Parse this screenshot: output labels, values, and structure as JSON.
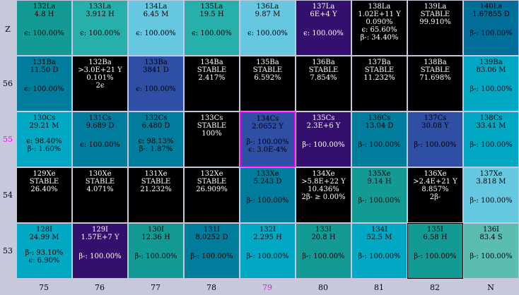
{
  "y_axis": [
    {
      "label": "Z",
      "highlight": false
    },
    {
      "label": "56",
      "highlight": false
    },
    {
      "label": "55",
      "highlight": true
    },
    {
      "label": "54",
      "highlight": false
    },
    {
      "label": "53",
      "highlight": false
    }
  ],
  "x_axis": [
    {
      "label": "75",
      "highlight": false
    },
    {
      "label": "76",
      "highlight": false
    },
    {
      "label": "77",
      "highlight": false
    },
    {
      "label": "78",
      "highlight": false
    },
    {
      "label": "79",
      "highlight": true
    },
    {
      "label": "80",
      "highlight": false
    },
    {
      "label": "81",
      "highlight": false
    },
    {
      "label": "82",
      "highlight": false
    },
    {
      "label": "N",
      "highlight": false
    }
  ],
  "rows": [
    [
      {
        "name": "132La",
        "life": "4.8 H",
        "extra": [],
        "decay": [
          "ϵ: 100.00%"
        ],
        "color": "#149a94",
        "text": "#000"
      },
      {
        "name": "133La",
        "life": "3.912 H",
        "extra": [],
        "decay": [
          "ϵ: 100.00%"
        ],
        "color": "#26afab",
        "text": "#000"
      },
      {
        "name": "134La",
        "life": "6.45 M",
        "extra": [],
        "decay": [
          "ϵ: 100.00%"
        ],
        "color": "#66c8e0",
        "text": "#000"
      },
      {
        "name": "135La",
        "life": "19.5 H",
        "extra": [],
        "decay": [
          "ϵ: 100.00%"
        ],
        "color": "#26afab",
        "text": "#000"
      },
      {
        "name": "136La",
        "life": "9.87 M",
        "extra": [],
        "decay": [
          "ϵ: 100.00%"
        ],
        "color": "#66c8e0",
        "text": "#000"
      },
      {
        "name": "137La",
        "life": "6E+4 Y",
        "extra": [],
        "decay": [
          "ϵ: 100.00%"
        ],
        "color": "#33106e",
        "text": "#fff"
      },
      {
        "name": "138La",
        "life": "1.02E+11 Y",
        "extra": [
          "0.090%"
        ],
        "decay": [
          "ϵ: 65.60%",
          "β-: 34.40%"
        ],
        "color": "#000000",
        "text": "#fff"
      },
      {
        "name": "139La",
        "life": "STABLE",
        "extra": [
          "99.910%"
        ],
        "decay": [],
        "color": "#000000",
        "text": "#fff"
      },
      {
        "name": "140La",
        "life": "1.67855 D",
        "extra": [],
        "decay": [
          "β-: 100.00%"
        ],
        "color": "#006e98",
        "text": "#000"
      }
    ],
    [
      {
        "name": "131Ba",
        "life": "11.50 D",
        "extra": [],
        "decay": [
          "ϵ: 100.00%"
        ],
        "color": "#007c9c",
        "text": "#000"
      },
      {
        "name": "132Ba",
        "life": ">3.0E+21 Y",
        "extra": [
          "0.101%",
          "2ϵ"
        ],
        "decay": [],
        "color": "#000000",
        "text": "#fff"
      },
      {
        "name": "133Ba",
        "life": "3841 D",
        "extra": [],
        "decay": [
          "ϵ: 100.00%"
        ],
        "color": "#2e4fa4",
        "text": "#000"
      },
      {
        "name": "134Ba",
        "life": "STABLE",
        "extra": [
          "2.417%"
        ],
        "decay": [],
        "color": "#000000",
        "text": "#fff"
      },
      {
        "name": "135Ba",
        "life": "STABLE",
        "extra": [
          "6.592%"
        ],
        "decay": [],
        "color": "#000000",
        "text": "#fff"
      },
      {
        "name": "136Ba",
        "life": "STABLE",
        "extra": [
          "7.854%"
        ],
        "decay": [],
        "color": "#000000",
        "text": "#fff"
      },
      {
        "name": "137Ba",
        "life": "STABLE",
        "extra": [
          "11.232%"
        ],
        "decay": [],
        "color": "#000000",
        "text": "#fff"
      },
      {
        "name": "138Ba",
        "life": "STABLE",
        "extra": [
          "71.698%"
        ],
        "decay": [],
        "color": "#000000",
        "text": "#fff"
      },
      {
        "name": "139Ba",
        "life": "83.06 M",
        "extra": [],
        "decay": [
          "β-: 100.00%"
        ],
        "color": "#00a8c4",
        "text": "#000"
      }
    ],
    [
      {
        "name": "130Cs",
        "life": "29.21 M",
        "extra": [],
        "decay": [
          "ϵ: 98.40%",
          "β-: 1.60%"
        ],
        "color": "#00a8c4",
        "text": "#000"
      },
      {
        "name": "131Cs",
        "life": "9.689 D",
        "extra": [],
        "decay": [
          "ϵ: 100.00%"
        ],
        "color": "#007c9c",
        "text": "#000"
      },
      {
        "name": "132Cs",
        "life": "6.480 D",
        "extra": [],
        "decay": [
          "ϵ: 98.13%",
          "β-: 1.87%"
        ],
        "color": "#007c9c",
        "text": "#000"
      },
      {
        "name": "133Cs",
        "life": "STABLE",
        "extra": [
          "100%"
        ],
        "decay": [],
        "color": "#000000",
        "text": "#fff"
      },
      {
        "name": "134Cs",
        "life": "2.0652 Y",
        "extra": [],
        "decay": [
          "β-: 100.00%",
          "ϵ: 3.0E-4%"
        ],
        "color": "#2e4fa4",
        "text": "#000",
        "selected": true
      },
      {
        "name": "135Cs",
        "life": "2.3E+6 Y",
        "extra": [],
        "decay": [
          "β-: 100.00%"
        ],
        "color": "#33106e",
        "text": "#fff"
      },
      {
        "name": "136Cs",
        "life": "13.04 D",
        "extra": [],
        "decay": [
          "β-: 100.00%"
        ],
        "color": "#007c9c",
        "text": "#000"
      },
      {
        "name": "137Cs",
        "life": "30.08 Y",
        "extra": [],
        "decay": [
          "β-: 100.00%"
        ],
        "color": "#2e4fa4",
        "text": "#000"
      },
      {
        "name": "138Cs",
        "life": "33.41 M",
        "extra": [],
        "decay": [
          "β-: 100.00%"
        ],
        "color": "#00a8c4",
        "text": "#000"
      }
    ],
    [
      {
        "name": "129Xe",
        "life": "STABLE",
        "extra": [
          "26.40%"
        ],
        "decay": [],
        "color": "#000000",
        "text": "#fff"
      },
      {
        "name": "130Xe",
        "life": "STABLE",
        "extra": [
          "4.071%"
        ],
        "decay": [],
        "color": "#000000",
        "text": "#fff"
      },
      {
        "name": "131Xe",
        "life": "STABLE",
        "extra": [
          "21.232%"
        ],
        "decay": [],
        "color": "#000000",
        "text": "#fff"
      },
      {
        "name": "132Xe",
        "life": "STABLE",
        "extra": [
          "26.909%"
        ],
        "decay": [],
        "color": "#000000",
        "text": "#fff"
      },
      {
        "name": "133Xe",
        "life": "5.243 D",
        "extra": [],
        "decay": [
          "β-: 100.00%"
        ],
        "color": "#007c9c",
        "text": "#000"
      },
      {
        "name": "134Xe",
        "life": ">5.8E+22 Y",
        "extra": [
          "10.436%",
          "2β- ≥ 0.00%"
        ],
        "decay": [],
        "color": "#000000",
        "text": "#fff"
      },
      {
        "name": "135Xe",
        "life": "9.14 H",
        "extra": [],
        "decay": [
          "β-: 100.00%"
        ],
        "color": "#149a94",
        "text": "#000"
      },
      {
        "name": "136Xe",
        "life": ">2.4E+21 Y",
        "extra": [
          "8.857%",
          "2β-"
        ],
        "decay": [],
        "color": "#000000",
        "text": "#fff"
      },
      {
        "name": "137Xe",
        "life": "3.818 M",
        "extra": [],
        "decay": [
          "β-: 100.00%"
        ],
        "color": "#66c8e0",
        "text": "#000"
      }
    ],
    [
      {
        "name": "128I",
        "life": "24.99 M",
        "extra": [],
        "decay": [
          "β-: 93.10%",
          "ϵ: 6.90%"
        ],
        "color": "#00a8c4",
        "text": "#000"
      },
      {
        "name": "129I",
        "life": "1.57E+7 Y",
        "extra": [],
        "decay": [
          "β-: 100.00%"
        ],
        "color": "#33106e",
        "text": "#fff"
      },
      {
        "name": "130I",
        "life": "12.36 H",
        "extra": [],
        "decay": [
          "β-: 100.00%"
        ],
        "color": "#149a94",
        "text": "#000"
      },
      {
        "name": "131I",
        "life": "8.0252 D",
        "extra": [],
        "decay": [
          "β-: 100.00%"
        ],
        "color": "#007c9c",
        "text": "#000"
      },
      {
        "name": "132I",
        "life": "2.295 H",
        "extra": [],
        "decay": [
          "β-: 100.00%"
        ],
        "color": "#00a8c4",
        "text": "#000"
      },
      {
        "name": "133I",
        "life": "20.8 H",
        "extra": [],
        "decay": [
          "β-: 100.00%"
        ],
        "color": "#149a94",
        "text": "#000"
      },
      {
        "name": "134I",
        "life": "52.5 M",
        "extra": [],
        "decay": [
          "β-: 100.00%"
        ],
        "color": "#00a8c4",
        "text": "#000"
      },
      {
        "name": "135I",
        "life": "6.58 H",
        "extra": [],
        "decay": [
          "β-: 100.00%"
        ],
        "color": "#149a94",
        "text": "#000",
        "boxed": true
      },
      {
        "name": "136I",
        "life": "83.4 S",
        "extra": [],
        "decay": [
          "β-: 100.00%"
        ],
        "color": "#5bbdb0",
        "text": "#000"
      }
    ]
  ]
}
